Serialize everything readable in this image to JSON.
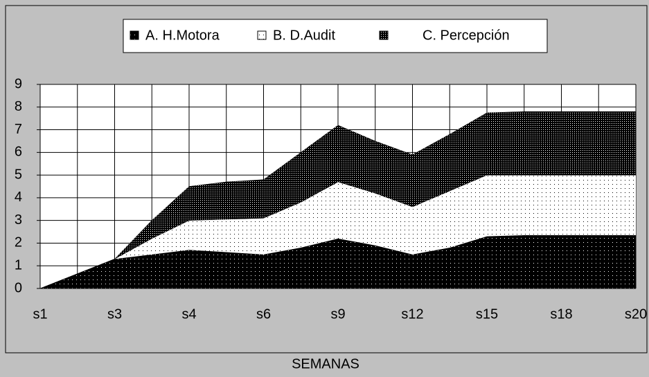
{
  "chart_data": {
    "type": "stacked_area",
    "x_label": "SEMANAS",
    "categories": [
      "s1",
      null,
      "s3",
      null,
      "s4",
      null,
      "s6",
      null,
      "s9",
      null,
      "s12",
      null,
      "s15",
      null,
      "s18",
      null,
      "s20"
    ],
    "series": [
      {
        "name": "A. H.Motora",
        "color": "#000000",
        "values": [
          0,
          0.65,
          1.3,
          1.5,
          1.7,
          1.6,
          1.5,
          1.8,
          2.2,
          1.9,
          1.5,
          1.8,
          2.3,
          2.35,
          2.35,
          2.35,
          2.35
        ]
      },
      {
        "name": "B. D.Audit",
        "color": "#ffffff",
        "values": [
          0,
          0,
          0,
          0.7,
          1.3,
          1.45,
          1.6,
          2.0,
          2.5,
          2.3,
          2.1,
          2.5,
          2.7,
          2.65,
          2.65,
          2.65,
          2.65
        ]
      },
      {
        "name": "C. Percepción",
        "color": "#1a1a1a",
        "values": [
          0,
          0,
          0,
          0.8,
          1.5,
          1.65,
          1.7,
          2.2,
          2.5,
          2.3,
          2.3,
          2.5,
          2.75,
          2.8,
          2.8,
          2.8,
          2.8
        ]
      }
    ],
    "ylim": [
      0,
      9
    ],
    "yticks": [
      0,
      1,
      2,
      3,
      4,
      5,
      6,
      7,
      8,
      9
    ],
    "grid": true,
    "legend": "top"
  }
}
